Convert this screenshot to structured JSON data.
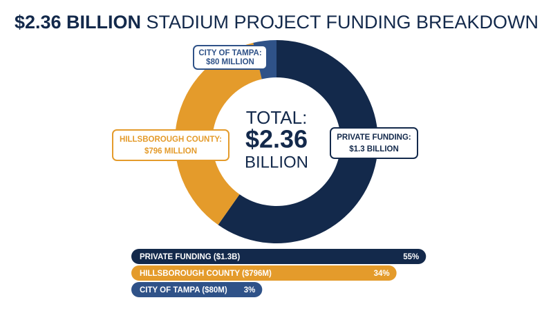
{
  "chart_data": [
    {
      "type": "donut",
      "title_highlight": "$2.36 BILLION",
      "title": "STADIUM PROJECT FUNDING BREAKDOWN",
      "center_label": [
        "TOTAL:",
        "$2.36",
        "BILLION"
      ],
      "categories": [
        "PRIVATE FUNDING:",
        "HILLSBOROUGH COUNTY:",
        "CITY OF TAMPA:"
      ],
      "values": [
        1300,
        796,
        80
      ],
      "value_labels": [
        "$1.3 BILLION",
        "$796 MILLION",
        "$80 MILLION"
      ],
      "colors": [
        "#13294b",
        "#e49b2b",
        "#2f5288"
      ]
    },
    {
      "type": "hbar",
      "categories": [
        "PRIVATE FUNDING ($1.3B)",
        "HILLSBOROUGH COUNTY ($796M)",
        "CITY OF TAMPA ($80M)"
      ],
      "values": [
        55,
        34,
        3
      ],
      "value_labels": [
        "55%",
        "34%",
        "3%"
      ],
      "colors": [
        "#13294b",
        "#e49b2b",
        "#2f5288"
      ]
    }
  ]
}
